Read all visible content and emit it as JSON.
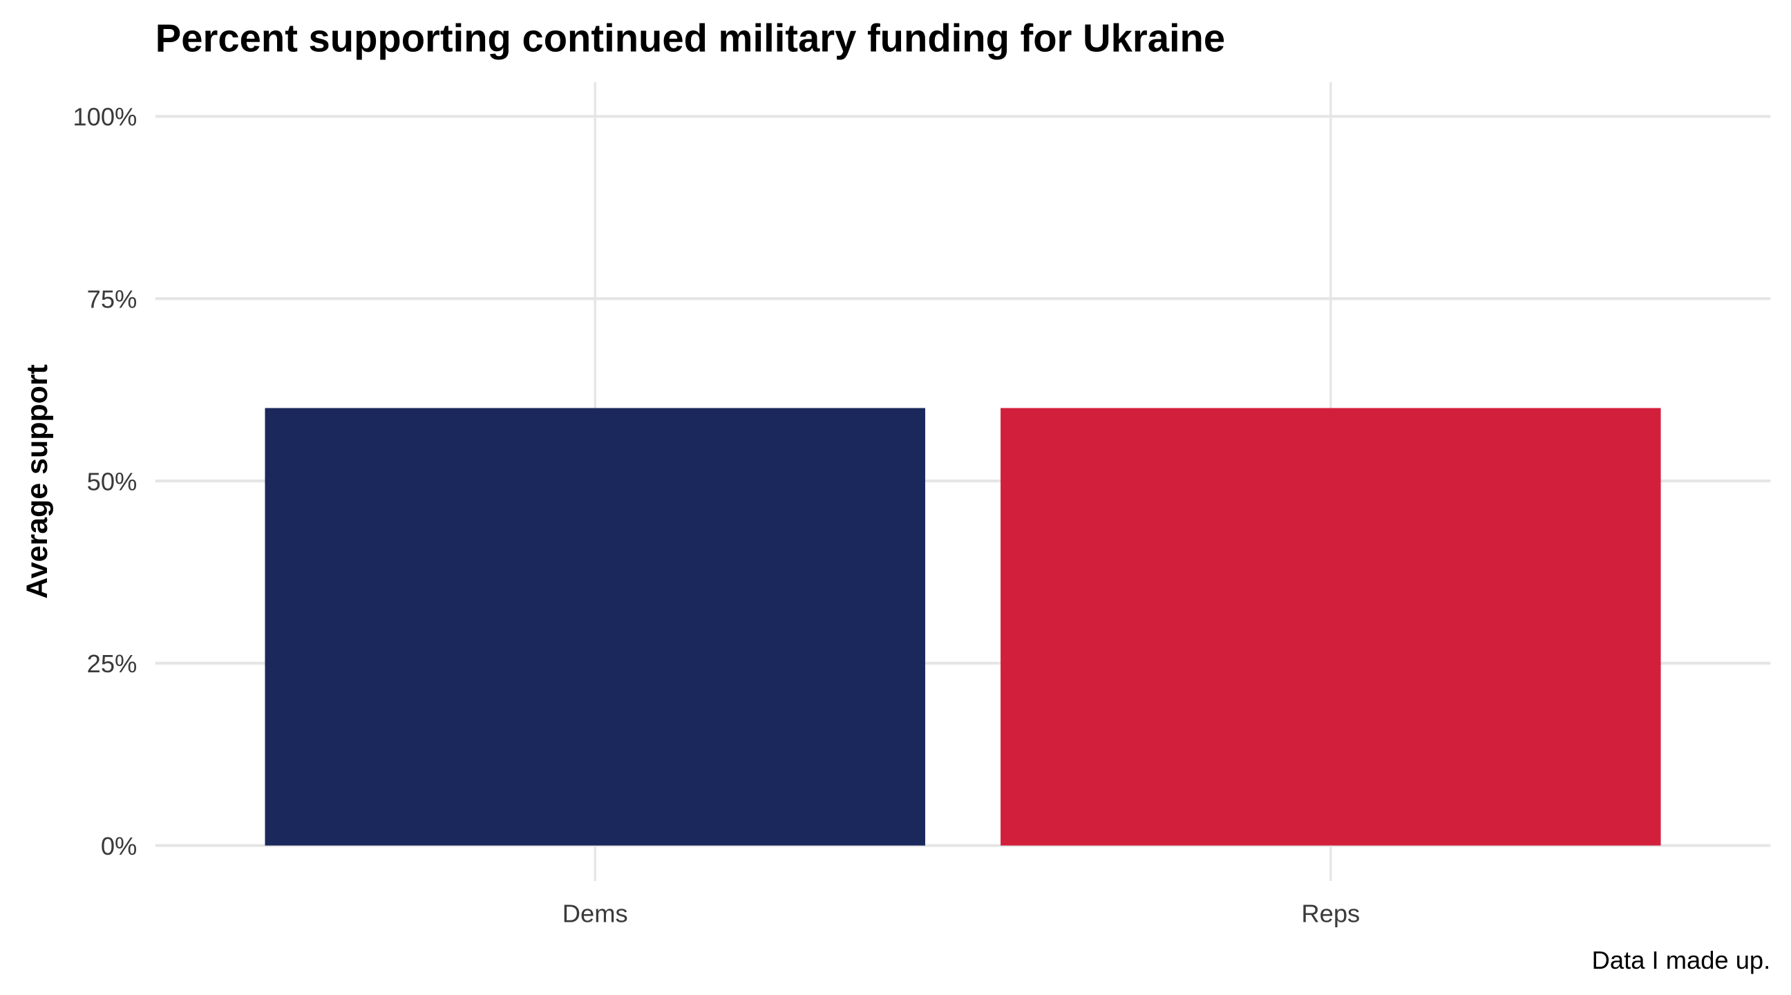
{
  "chart_data": {
    "type": "bar",
    "title": "Percent supporting continued military funding for Ukraine",
    "xlabel": "",
    "ylabel": "Average support",
    "caption": "Data I made up.",
    "categories": [
      "Dems",
      "Reps"
    ],
    "values": [
      60,
      60
    ],
    "colors": [
      "#1a285c",
      "#d21f3c"
    ],
    "ylim": [
      0,
      100
    ],
    "yticks": [
      0,
      25,
      50,
      75,
      100
    ],
    "ytick_labels": [
      "0%",
      "25%",
      "50%",
      "75%",
      "100%"
    ],
    "grid": true,
    "legend": "none"
  }
}
